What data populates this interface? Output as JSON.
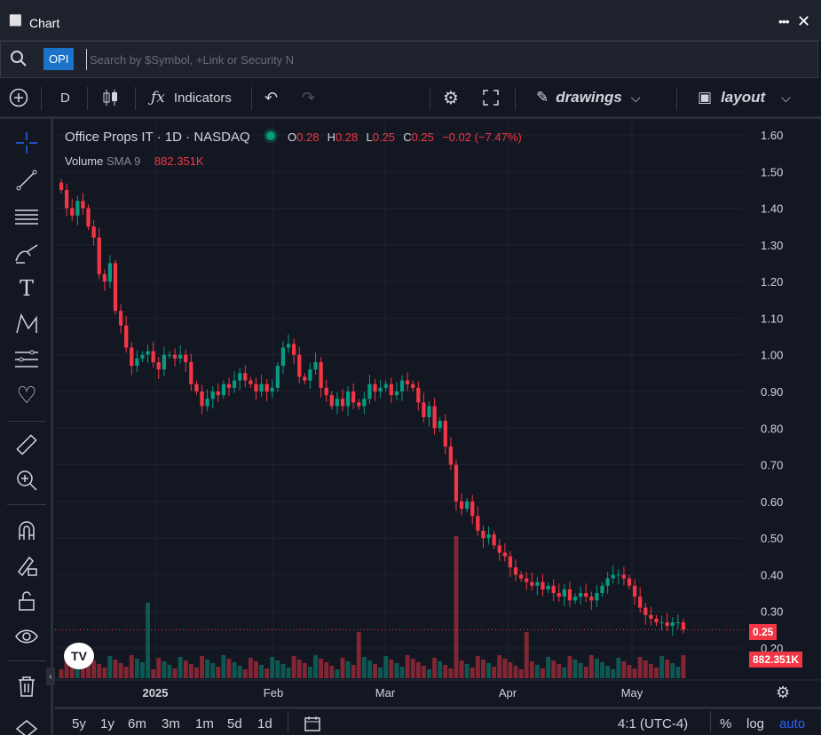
{
  "window": {
    "title": "Chart"
  },
  "search": {
    "symbol": "OPI",
    "placeholder": "Search by $Symbol, +Link or Security N"
  },
  "toolbar": {
    "interval": "D",
    "indicators": "Indicators",
    "drawings": "drawings",
    "layout": "layout"
  },
  "legend": {
    "title": "Office Props IT · 1D · NASDAQ",
    "o_label": "O",
    "o": "0.28",
    "h_label": "H",
    "h": "0.28",
    "l_label": "L",
    "l": "0.25",
    "c_label": "C",
    "c": "0.25",
    "change": "−0.02 (−7.47%)",
    "volume_label": "Volume",
    "sma_label": "SMA 9",
    "volume_value": "882.351K"
  },
  "badges": {
    "last_price": "0.25",
    "last_volume": "882.351K"
  },
  "bottom": {
    "ranges": [
      "5y",
      "1y",
      "6m",
      "3m",
      "1m",
      "5d",
      "1d"
    ],
    "ratio": "4:1 (UTC-4)",
    "percent": "%",
    "log": "log",
    "auto": "auto"
  },
  "colors": {
    "up": "#089981",
    "down": "#f23645",
    "background": "#131722",
    "grid": "#1f2330",
    "accent": "#1a73c8"
  },
  "chart_data": {
    "type": "candlestick",
    "title": "Office Props IT · 1D · NASDAQ",
    "yticks": [
      "1.60",
      "1.50",
      "1.40",
      "1.30",
      "1.20",
      "1.10",
      "1.00",
      "0.90",
      "0.80",
      "0.70",
      "0.60",
      "0.50",
      "0.40",
      "0.30",
      "0.20"
    ],
    "ylim": [
      0.2,
      1.6
    ],
    "xticks": [
      "2025",
      "Feb",
      "Mar",
      "Apr",
      "May"
    ],
    "close": [
      1.45,
      1.4,
      1.38,
      1.42,
      1.4,
      1.35,
      1.32,
      1.22,
      1.2,
      1.25,
      1.12,
      1.08,
      1.02,
      0.97,
      0.99,
      1.0,
      1.01,
      0.98,
      0.96,
      1.0,
      1.0,
      0.99,
      1.0,
      0.98,
      0.92,
      0.9,
      0.86,
      0.88,
      0.9,
      0.89,
      0.92,
      0.91,
      0.93,
      0.95,
      0.93,
      0.92,
      0.9,
      0.92,
      0.9,
      0.91,
      0.97,
      1.02,
      1.03,
      1.0,
      0.94,
      0.93,
      0.96,
      0.98,
      0.91,
      0.89,
      0.86,
      0.88,
      0.86,
      0.9,
      0.87,
      0.86,
      0.88,
      0.92,
      0.9,
      0.91,
      0.92,
      0.89,
      0.9,
      0.93,
      0.92,
      0.91,
      0.87,
      0.83,
      0.86,
      0.8,
      0.82,
      0.75,
      0.7,
      0.6,
      0.58,
      0.6,
      0.56,
      0.52,
      0.5,
      0.51,
      0.48,
      0.46,
      0.45,
      0.42,
      0.4,
      0.39,
      0.38,
      0.37,
      0.38,
      0.36,
      0.37,
      0.35,
      0.34,
      0.36,
      0.33,
      0.34,
      0.35,
      0.34,
      0.33,
      0.35,
      0.37,
      0.39,
      0.4,
      0.4,
      0.39,
      0.37,
      0.34,
      0.31,
      0.29,
      0.28,
      0.27,
      0.27,
      0.26,
      0.27,
      0.27,
      0.25
    ],
    "volume_highlights": [
      {
        "index": 16,
        "value": "spike"
      },
      {
        "index": 73,
        "value": "spike"
      }
    ]
  }
}
